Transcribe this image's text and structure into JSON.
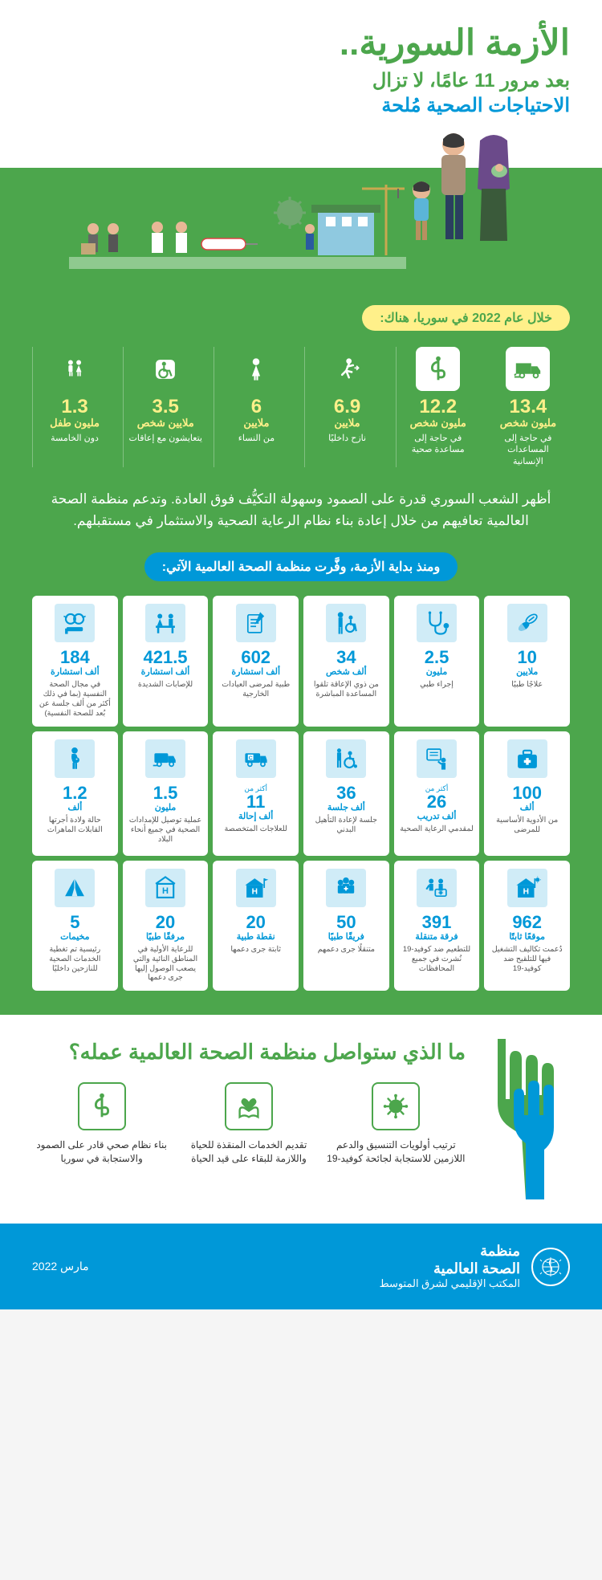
{
  "header": {
    "title": "الأزمة السورية..",
    "subtitle1": "بعد مرور 11 عامًا، لا تزال",
    "subtitle2": "الاحتياجات الصحية مُلحة"
  },
  "yearLabel": "خلال عام 2022 في سوريا، هناك:",
  "topStats": [
    {
      "num": "13.4",
      "unit": "مليون شخص",
      "desc": "في حاجة إلى المساعدات الإنسانية",
      "icon": "truck",
      "big": true
    },
    {
      "num": "12.2",
      "unit": "مليون شخص",
      "desc": "في حاجة إلى مساعدة صحية",
      "icon": "medical",
      "big": true
    },
    {
      "num": "6.9",
      "unit": "ملايين",
      "desc": "نازح داخليًا",
      "icon": "run",
      "big": false
    },
    {
      "num": "6",
      "unit": "ملايين",
      "desc": "من النساء",
      "icon": "woman",
      "big": false
    },
    {
      "num": "3.5",
      "unit": "ملايين شخص",
      "desc": "يتعايشون مع إعاقات",
      "icon": "wheelchair",
      "big": false
    },
    {
      "num": "1.3",
      "unit": "مليون طفل",
      "desc": "دون الخامسة",
      "icon": "children",
      "big": false
    }
  ],
  "bodyText": "أظهر الشعب السوري قدرة على الصمود وسهولة التكيُّف فوق العادة. وتدعم منظمة الصحة العالمية تعافيهم من خلال إعادة بناء نظام الرعاية الصحية والاستثمار في مستقبلهم.",
  "sectionLabel": "ومنذ بداية الأزمة، وفَّرت منظمة الصحة العالمية الآتي:",
  "cards": [
    {
      "num": "10",
      "unit": "ملايين",
      "desc": "علاجًا طبيًا",
      "icon": "pills"
    },
    {
      "num": "2.5",
      "unit": "مليون",
      "desc": "إجراء طبي",
      "icon": "stethoscope"
    },
    {
      "num": "34",
      "unit": "ألف شخص",
      "desc": "من ذوي الإعاقة تلقوا المساعدة المباشرة",
      "icon": "assist"
    },
    {
      "num": "602",
      "unit": "ألف استشارة",
      "desc": "طبية لمرضى العيادات الخارجية",
      "icon": "form"
    },
    {
      "num": "421.5",
      "unit": "ألف استشارة",
      "desc": "للإصابات الشديدة",
      "icon": "desk"
    },
    {
      "num": "184",
      "unit": "ألف استشارة",
      "desc": "في مجال الصحة النفسية (بما في ذلك أكثر من ألف جلسة عن بُعد للصحة النفسية)",
      "icon": "mental"
    },
    {
      "num": "100",
      "unit": "ألف",
      "desc": "من الأدوية الأساسية للمرضى",
      "icon": "medkit"
    },
    {
      "num": "26",
      "unit": "ألف تدريب",
      "desc": "لمقدمي الرعاية الصحية",
      "icon": "training",
      "prefix": "أكثر من"
    },
    {
      "num": "36",
      "unit": "ألف جلسة",
      "desc": "جلسة لإعادة التأهيل البدني",
      "icon": "rehab"
    },
    {
      "num": "11",
      "unit": "ألف إحالة",
      "desc": "للعلاجات المتخصصة",
      "icon": "ambulance",
      "prefix": "أكثر من"
    },
    {
      "num": "1.5",
      "unit": "مليون",
      "desc": "عملية توصيل للإمدادات الصحية في جميع أنحاء البلاد",
      "icon": "delivery"
    },
    {
      "num": "1.2",
      "unit": "ألف",
      "desc": "حالة ولادة أجرتها القابلات الماهرات",
      "icon": "pregnant"
    },
    {
      "num": "962",
      "unit": "موقعًا ثابتًا",
      "desc": "دُعمت تكاليف التشغيل فيها للتلقيح ضد كوفيد-19",
      "icon": "site"
    },
    {
      "num": "391",
      "unit": "فرقة متنقلة",
      "desc": "للتطعيم ضد كوفيد-19 نُشرت في جميع المحافظات",
      "icon": "mobile-team"
    },
    {
      "num": "50",
      "unit": "فريقًا طبيًا",
      "desc": "متنقلًا جرى دعمهم",
      "icon": "team"
    },
    {
      "num": "20",
      "unit": "نقطة طبية",
      "desc": "ثابتة جرى دعمها",
      "icon": "point"
    },
    {
      "num": "20",
      "unit": "مرفقًا طبيًا",
      "desc": "للرعاية الأولية في المناطق النائية والتي يصعب الوصول إليها جرى دعمها",
      "icon": "facility"
    },
    {
      "num": "5",
      "unit": "مخيمات",
      "desc": "رئيسية تم تغطية الخدمات الصحية للنازحين داخليًا",
      "icon": "tent"
    }
  ],
  "continue": {
    "title": "ما الذي ستواصل منظمة الصحة العالمية عمله؟",
    "items": [
      {
        "text": "ترتيب أولويات التنسيق والدعم اللازمين للاستجابة لجائحة كوفيد-19",
        "icon": "virus"
      },
      {
        "text": "تقديم الخدمات المنقذة للحياة واللازمة للبقاء على قيد الحياة",
        "icon": "care"
      },
      {
        "text": "بناء نظام صحي قادر على الصمود والاستجابة في سوريا",
        "icon": "system"
      }
    ]
  },
  "footer": {
    "org1": "منظمة",
    "org2": "الصحة العالمية",
    "sub": "المكتب الإقليمي لشرق المتوسط",
    "date": "مارس 2022"
  },
  "colors": {
    "green": "#4ca64c",
    "blue": "#0098d8",
    "yellow": "#fff08a",
    "lightblue": "#d0ecf7"
  }
}
